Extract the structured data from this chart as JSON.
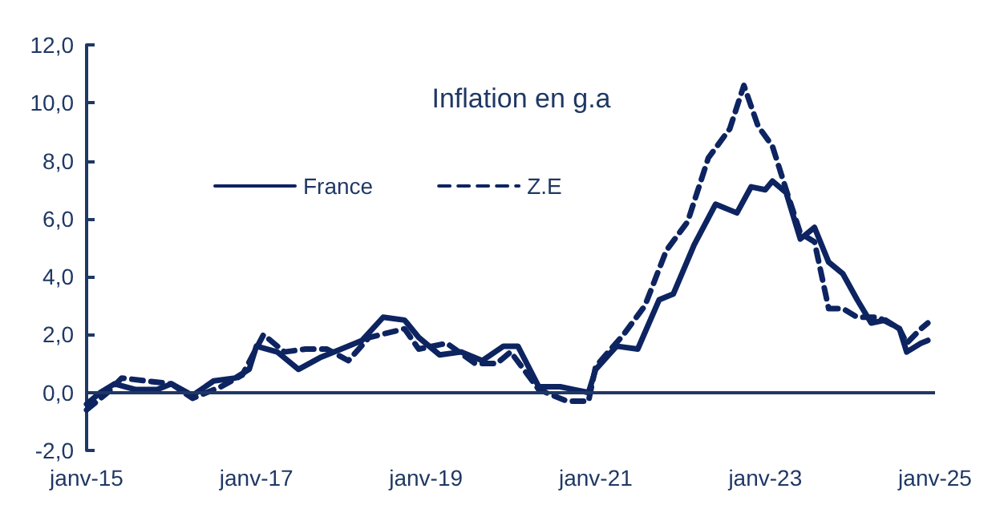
{
  "chart_data": {
    "type": "line",
    "title": "Inflation en g.a",
    "xlim": [
      "2015-01",
      "2025-01"
    ],
    "xticks": [
      {
        "value": "2015-01",
        "label": "janv-15"
      },
      {
        "value": "2017-01",
        "label": "janv-17"
      },
      {
        "value": "2019-01",
        "label": "janv-19"
      },
      {
        "value": "2021-01",
        "label": "janv-21"
      },
      {
        "value": "2023-01",
        "label": "janv-23"
      },
      {
        "value": "2025-01",
        "label": "janv-25"
      }
    ],
    "ylim": [
      -2,
      12
    ],
    "yticks": [
      {
        "value": -2,
        "label": "-2,0"
      },
      {
        "value": 0,
        "label": "0,0"
      },
      {
        "value": 2,
        "label": "2,0"
      },
      {
        "value": 4,
        "label": "4,0"
      },
      {
        "value": 6,
        "label": "6,0"
      },
      {
        "value": 8,
        "label": "8,0"
      },
      {
        "value": 10,
        "label": "10,0"
      },
      {
        "value": 12,
        "label": "12,0"
      }
    ],
    "grid": false,
    "legend": "top left",
    "marker": "none",
    "ref_lines": [
      {
        "axis": "y",
        "value": 0,
        "color": "#1f3864",
        "line_style": "solid"
      }
    ],
    "series": [
      {
        "name": "France",
        "color": "#0d2461",
        "line_style": "solid",
        "x": [
          "2015-01",
          "2015-03",
          "2015-05",
          "2015-08",
          "2015-11",
          "2016-01",
          "2016-04",
          "2016-07",
          "2016-10",
          "2016-12",
          "2017-01",
          "2017-04",
          "2017-07",
          "2017-10",
          "2018-01",
          "2018-04",
          "2018-07",
          "2018-10",
          "2018-12",
          "2019-03",
          "2019-06",
          "2019-09",
          "2019-12",
          "2020-02",
          "2020-05",
          "2020-08",
          "2020-10",
          "2020-12",
          "2021-01",
          "2021-04",
          "2021-07",
          "2021-10",
          "2021-12",
          "2022-03",
          "2022-06",
          "2022-09",
          "2022-11",
          "2023-01",
          "2023-02",
          "2023-04",
          "2023-06",
          "2023-08",
          "2023-10",
          "2023-12",
          "2024-02",
          "2024-04",
          "2024-06",
          "2024-08",
          "2024-09",
          "2024-11",
          "2024-12"
        ],
        "values": [
          -0.4,
          0.0,
          0.3,
          0.1,
          0.1,
          0.3,
          -0.1,
          0.4,
          0.5,
          0.8,
          1.6,
          1.4,
          0.8,
          1.2,
          1.5,
          1.8,
          2.6,
          2.5,
          1.9,
          1.3,
          1.4,
          1.1,
          1.6,
          1.6,
          0.2,
          0.2,
          0.1,
          0.0,
          0.8,
          1.6,
          1.5,
          3.2,
          3.4,
          5.1,
          6.5,
          6.2,
          7.1,
          7.0,
          7.3,
          6.9,
          5.3,
          5.7,
          4.5,
          4.1,
          3.2,
          2.4,
          2.5,
          2.2,
          1.4,
          1.7,
          1.8
        ]
      },
      {
        "name": "Z.E",
        "color": "#0d2461",
        "line_style": "dashed",
        "x": [
          "2015-01",
          "2015-04",
          "2015-06",
          "2016-01",
          "2016-04",
          "2016-08",
          "2016-11",
          "2017-02",
          "2017-05",
          "2017-08",
          "2017-11",
          "2018-02",
          "2018-05",
          "2018-10",
          "2018-12",
          "2019-04",
          "2019-08",
          "2019-11",
          "2020-01",
          "2020-05",
          "2020-09",
          "2020-12",
          "2021-01",
          "2021-05",
          "2021-08",
          "2021-11",
          "2022-02",
          "2022-05",
          "2022-08",
          "2022-10",
          "2022-12",
          "2023-02",
          "2023-04",
          "2023-06",
          "2023-08",
          "2023-10",
          "2023-12",
          "2024-02",
          "2024-05",
          "2024-08",
          "2024-09",
          "2024-11",
          "2024-12"
        ],
        "values": [
          -0.6,
          0.0,
          0.5,
          0.3,
          -0.2,
          0.2,
          0.6,
          2.0,
          1.4,
          1.5,
          1.5,
          1.1,
          1.9,
          2.2,
          1.5,
          1.7,
          1.0,
          1.0,
          1.4,
          0.1,
          -0.3,
          -0.3,
          0.9,
          2.0,
          3.0,
          4.9,
          5.9,
          8.1,
          9.1,
          10.6,
          9.2,
          8.5,
          7.0,
          5.5,
          5.2,
          2.9,
          2.9,
          2.6,
          2.6,
          2.2,
          1.7,
          2.2,
          2.4
        ]
      }
    ]
  }
}
